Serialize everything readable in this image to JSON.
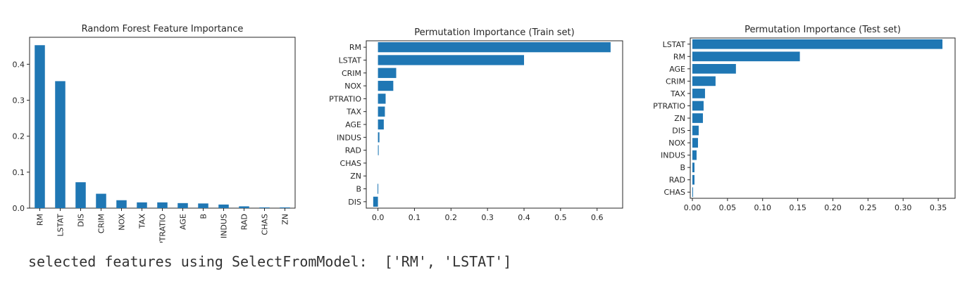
{
  "chart_data": [
    {
      "type": "bar",
      "orientation": "vertical",
      "title": "Random Forest Feature Importance",
      "xlabel": "",
      "ylabel": "",
      "categories": [
        "RM",
        "LSTAT",
        "DIS",
        "CRIM",
        "NOX",
        "TAX",
        "PTRATIO",
        "AGE",
        "B",
        "INDUS",
        "RAD",
        "CHAS",
        "ZN"
      ],
      "values": [
        0.453,
        0.353,
        0.072,
        0.04,
        0.022,
        0.016,
        0.016,
        0.014,
        0.013,
        0.01,
        0.005,
        0.002,
        0.002
      ],
      "ylim": [
        0,
        0.475
      ],
      "yticks": [
        0.0,
        0.1,
        0.2,
        0.3,
        0.4
      ],
      "ytick_labels": [
        "0.0",
        "0.1",
        "0.2",
        "0.3",
        "0.4"
      ],
      "grid": false,
      "color": "#1f77b4"
    },
    {
      "type": "bar",
      "orientation": "horizontal",
      "title": "Permutation Importance (Train set)",
      "xlabel": "",
      "ylabel": "",
      "categories": [
        "RM",
        "LSTAT",
        "CRIM",
        "NOX",
        "PTRATIO",
        "TAX",
        "AGE",
        "INDUS",
        "RAD",
        "CHAS",
        "ZN",
        "B",
        "DIS"
      ],
      "values": [
        0.637,
        0.4,
        0.05,
        0.042,
        0.021,
        0.019,
        0.016,
        0.004,
        0.002,
        0.0,
        0.0,
        -0.001,
        -0.013
      ],
      "xlim": [
        -0.032,
        0.67
      ],
      "xticks": [
        0.0,
        0.1,
        0.2,
        0.3,
        0.4,
        0.5,
        0.6
      ],
      "xtick_labels": [
        "0.0",
        "0.1",
        "0.2",
        "0.3",
        "0.4",
        "0.5",
        "0.6"
      ],
      "grid": false,
      "color": "#1f77b4"
    },
    {
      "type": "bar",
      "orientation": "horizontal",
      "title": "Permutation Importance (Test set)",
      "xlabel": "",
      "ylabel": "",
      "categories": [
        "LSTAT",
        "RM",
        "AGE",
        "CRIM",
        "TAX",
        "PTRATIO",
        "ZN",
        "DIS",
        "NOX",
        "INDUS",
        "B",
        "RAD",
        "CHAS"
      ],
      "values": [
        0.356,
        0.153,
        0.062,
        0.033,
        0.018,
        0.016,
        0.015,
        0.009,
        0.008,
        0.006,
        0.003,
        0.003,
        0.001
      ],
      "xlim": [
        -0.003,
        0.374
      ],
      "xticks": [
        0.0,
        0.05,
        0.1,
        0.15,
        0.2,
        0.25,
        0.3,
        0.35
      ],
      "xtick_labels": [
        "0.00",
        "0.05",
        "0.10",
        "0.15",
        "0.20",
        "0.25",
        "0.30",
        "0.35"
      ],
      "grid": false,
      "color": "#1f77b4"
    }
  ],
  "output": {
    "text": "selected features using SelectFromModel:  ['RM', 'LSTAT']"
  }
}
